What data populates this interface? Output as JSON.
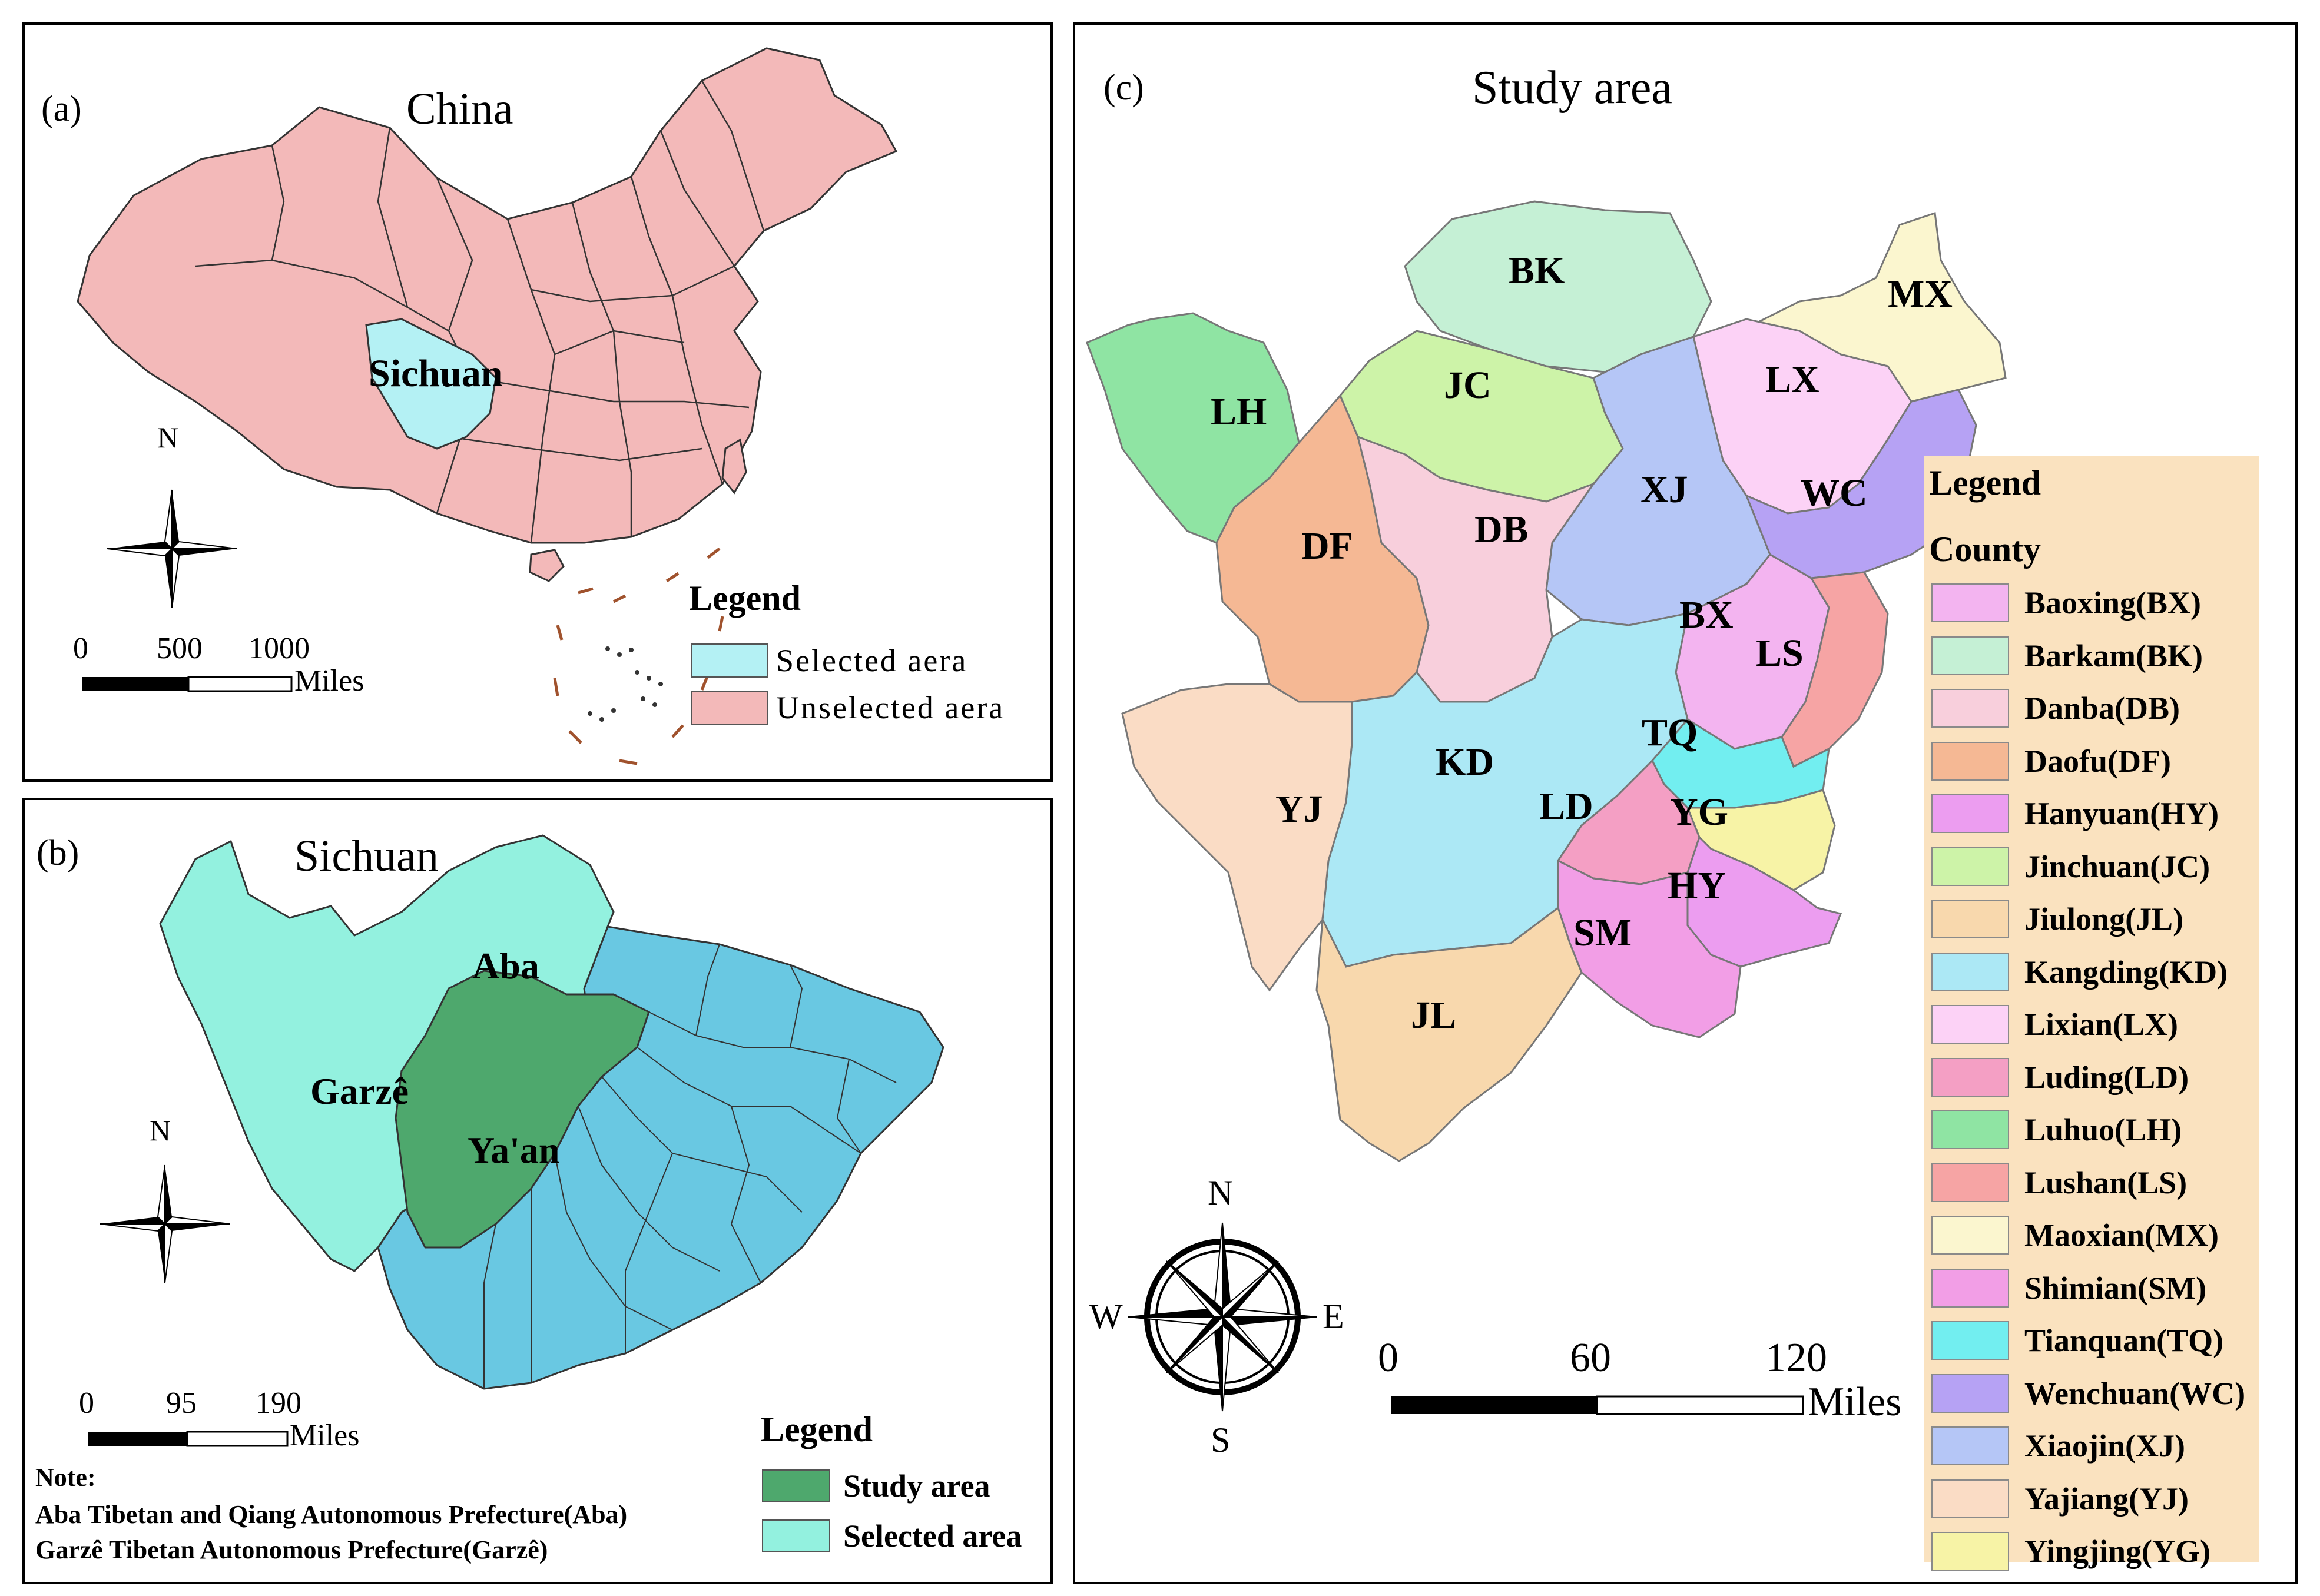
{
  "colors": {
    "china": "#f3b9b9",
    "sichuan_selected": "#b4f1f4",
    "aba_garze": "#93f1df",
    "study_area": "#4ea86d",
    "rest_sichuan": "#69c8e2",
    "boundary": "#333333",
    "legend_bg": "#fae2bf"
  },
  "panel_a": {
    "tag": "(a)",
    "title": "China",
    "region_label": "Sichuan",
    "north_label": "N",
    "scale": {
      "ticks": [
        "0",
        "500",
        "1000"
      ],
      "unit": "Miles"
    },
    "legend": {
      "title": "Legend",
      "items": [
        {
          "label": "Selected aera",
          "color": "#b4f1f4"
        },
        {
          "label": "Unselected aera",
          "color": "#f3b9b9"
        }
      ]
    }
  },
  "panel_b": {
    "tag": "(b)",
    "title": "Sichuan",
    "labels": {
      "aba": "Aba",
      "garze": "Garzê",
      "yaan": "Ya'an"
    },
    "north_label": "N",
    "scale": {
      "ticks": [
        "0",
        "95",
        "190"
      ],
      "unit": "Miles"
    },
    "note": {
      "heading": "Note:",
      "lines": [
        "Aba Tibetan and Qiang Autonomous Prefecture(Aba)",
        "Garzê Tibetan Autonomous Prefecture(Garzê)"
      ]
    },
    "legend": {
      "title": "Legend",
      "items": [
        {
          "label": "Study area",
          "color": "#4ea86d"
        },
        {
          "label": "Selected area",
          "color": "#93f1df"
        }
      ]
    }
  },
  "panel_c": {
    "tag": "(c)",
    "title": "Study area",
    "compass": {
      "n": "N",
      "s": "S",
      "e": "E",
      "w": "W"
    },
    "scale": {
      "ticks": [
        "0",
        "60",
        "120"
      ],
      "unit": "Miles"
    },
    "legend": {
      "title": "Legend",
      "subtitle": "County",
      "items": [
        {
          "label": "Baoxing(BX)",
          "color": "#f3b4f0"
        },
        {
          "label": "Barkam(BK)",
          "color": "#c5f0d5"
        },
        {
          "label": "Danba(DB)",
          "color": "#f8cfdc"
        },
        {
          "label": "Daofu(DF)",
          "color": "#f5b894"
        },
        {
          "label": "Hanyuan(HY)",
          "color": "#ec9df0"
        },
        {
          "label": "Jinchuan(JC)",
          "color": "#cdf3a8"
        },
        {
          "label": "Jiulong(JL)",
          "color": "#f8d8ad"
        },
        {
          "label": "Kangding(KD)",
          "color": "#ace8f5"
        },
        {
          "label": "Lixian(LX)",
          "color": "#fcd2f6"
        },
        {
          "label": "Luding(LD)",
          "color": "#f49fc4"
        },
        {
          "label": "Luhuo(LH)",
          "color": "#8fe4a3"
        },
        {
          "label": "Lushan(LS)",
          "color": "#f6a4a4"
        },
        {
          "label": "Maoxian(MX)",
          "color": "#fbf6cf"
        },
        {
          "label": "Shimian(SM)",
          "color": "#f29ee6"
        },
        {
          "label": "Tianquan(TQ)",
          "color": "#72eef0"
        },
        {
          "label": "Wenchuan(WC)",
          "color": "#b6a2f4"
        },
        {
          "label": "Xiaojin(XJ)",
          "color": "#b5c6f6"
        },
        {
          "label": "Yajiang(YJ)",
          "color": "#fadcc5"
        },
        {
          "label": "Yingjing(YG)",
          "color": "#f7f3a6"
        }
      ]
    },
    "map_labels": {
      "BK": "BK",
      "MX": "MX",
      "LH": "LH",
      "JC": "JC",
      "LX": "LX",
      "XJ": "XJ",
      "WC": "WC",
      "DF": "DF",
      "DB": "DB",
      "BX": "BX",
      "LS": "LS",
      "TQ": "TQ",
      "KD": "KD",
      "YJ": "YJ",
      "LD": "LD",
      "YG": "YG",
      "HY": "HY",
      "SM": "SM",
      "JL": "JL"
    }
  }
}
